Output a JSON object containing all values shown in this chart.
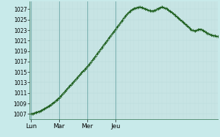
{
  "background_color": "#c8eaea",
  "plot_bg_color": "#cce8e8",
  "line_color": "#1a5c1a",
  "marker_color": "#1a5c1a",
  "grid_color": "#b8d8d8",
  "major_grid_color": "#7ab0b0",
  "ylim": [
    1006.0,
    1028.5
  ],
  "yticks": [
    1007,
    1009,
    1011,
    1013,
    1015,
    1017,
    1019,
    1021,
    1023,
    1025,
    1027
  ],
  "xtick_labels": [
    "Lun",
    "Mar",
    "Mer",
    "Jeu"
  ],
  "xtick_positions": [
    0,
    24,
    48,
    72
  ],
  "pressure_values": [
    1007.0,
    1007.05,
    1007.1,
    1007.2,
    1007.3,
    1007.35,
    1007.4,
    1007.5,
    1007.6,
    1007.7,
    1007.85,
    1007.95,
    1008.1,
    1008.2,
    1008.35,
    1008.5,
    1008.65,
    1008.8,
    1008.95,
    1009.1,
    1009.3,
    1009.5,
    1009.7,
    1009.9,
    1010.1,
    1010.35,
    1010.6,
    1010.85,
    1011.1,
    1011.35,
    1011.6,
    1011.85,
    1012.1,
    1012.35,
    1012.6,
    1012.85,
    1013.1,
    1013.35,
    1013.6,
    1013.85,
    1014.1,
    1014.35,
    1014.6,
    1014.85,
    1015.1,
    1015.35,
    1015.6,
    1015.85,
    1016.1,
    1016.35,
    1016.6,
    1016.9,
    1017.2,
    1017.5,
    1017.8,
    1018.1,
    1018.4,
    1018.7,
    1019.0,
    1019.3,
    1019.6,
    1019.9,
    1020.2,
    1020.5,
    1020.8,
    1021.1,
    1021.4,
    1021.7,
    1022.0,
    1022.3,
    1022.6,
    1022.9,
    1023.2,
    1023.5,
    1023.8,
    1024.1,
    1024.4,
    1024.7,
    1025.0,
    1025.3,
    1025.6,
    1025.9,
    1026.1,
    1026.35,
    1026.55,
    1026.75,
    1026.9,
    1027.05,
    1027.15,
    1027.25,
    1027.3,
    1027.35,
    1027.4,
    1027.4,
    1027.35,
    1027.3,
    1027.2,
    1027.1,
    1027.0,
    1026.9,
    1026.8,
    1026.75,
    1026.7,
    1026.68,
    1026.7,
    1026.75,
    1026.85,
    1027.0,
    1027.1,
    1027.25,
    1027.35,
    1027.4,
    1027.4,
    1027.35,
    1027.25,
    1027.15,
    1027.0,
    1026.85,
    1026.7,
    1026.55,
    1026.4,
    1026.2,
    1026.0,
    1025.8,
    1025.6,
    1025.4,
    1025.2,
    1025.0,
    1024.8,
    1024.6,
    1024.4,
    1024.2,
    1024.0,
    1023.8,
    1023.6,
    1023.4,
    1023.2,
    1023.05,
    1022.95,
    1022.9,
    1022.9,
    1023.0,
    1023.1,
    1023.2,
    1023.2,
    1023.15,
    1023.0,
    1022.85,
    1022.7,
    1022.55,
    1022.4,
    1022.3,
    1022.2,
    1022.1,
    1022.05,
    1022.0,
    1021.95,
    1021.9,
    1021.85,
    1021.8
  ]
}
